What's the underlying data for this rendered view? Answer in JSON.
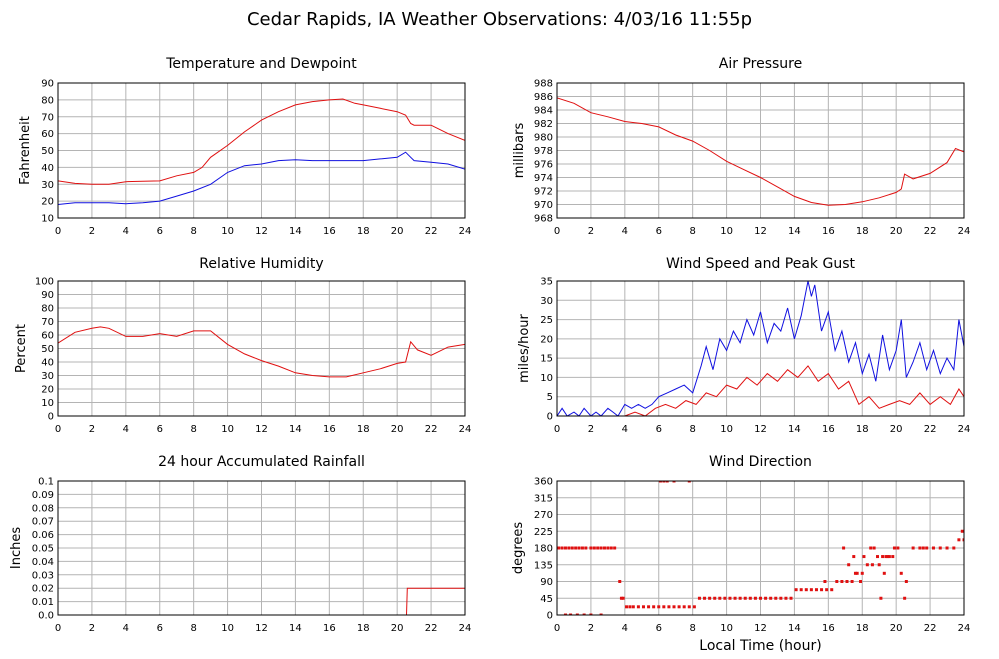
{
  "title": "Cedar Rapids, IA Weather Observations: 4/03/16 11:55p",
  "colors": {
    "red": "#e01010",
    "blue": "#1010e0",
    "grid": "#b4b4b4"
  },
  "chart_data": [
    {
      "id": "temperature",
      "type": "line",
      "title": "Temperature and Dewpoint",
      "xlabel": "",
      "ylabel": "Fahrenheit",
      "xlim": [
        0,
        24
      ],
      "ylim": [
        10,
        90
      ],
      "xticks": [
        0,
        2,
        4,
        6,
        8,
        10,
        12,
        14,
        16,
        18,
        20,
        22,
        24
      ],
      "yticks": [
        10,
        20,
        30,
        40,
        50,
        60,
        70,
        80,
        90
      ],
      "grid": true,
      "series": [
        {
          "color": "red",
          "x": [
            0,
            1,
            2,
            3,
            4,
            5,
            6,
            7,
            8,
            8.5,
            9,
            10,
            11,
            12,
            13,
            14,
            15,
            16,
            16.8,
            17.5,
            18,
            19,
            20,
            20.5,
            20.8,
            21,
            22,
            23,
            24
          ],
          "y": [
            32,
            30.5,
            30,
            30,
            31.5,
            31.8,
            32,
            35,
            37,
            40,
            46,
            53,
            61,
            68,
            73,
            77,
            79,
            80,
            80.5,
            78,
            77,
            75,
            73,
            71,
            66,
            65,
            65,
            60,
            56
          ]
        },
        {
          "color": "blue",
          "x": [
            0,
            1,
            2,
            3,
            4,
            5,
            6,
            7,
            8,
            9,
            10,
            11,
            12,
            13,
            14,
            15,
            16,
            17,
            18,
            19,
            20,
            20.5,
            20.8,
            21,
            22,
            23,
            24
          ],
          "y": [
            18,
            19,
            19,
            19,
            18.5,
            19,
            20,
            23,
            26,
            30,
            37,
            41,
            42,
            44,
            44.5,
            44,
            44,
            44,
            44,
            45,
            46,
            49,
            46,
            44,
            43,
            42,
            39
          ]
        }
      ]
    },
    {
      "id": "pressure",
      "type": "line",
      "title": "Air Pressure",
      "xlabel": "",
      "ylabel": "millibars",
      "xlim": [
        0,
        24
      ],
      "ylim": [
        968,
        988
      ],
      "xticks": [
        0,
        2,
        4,
        6,
        8,
        10,
        12,
        14,
        16,
        18,
        20,
        22,
        24
      ],
      "yticks": [
        968,
        970,
        972,
        974,
        976,
        978,
        980,
        982,
        984,
        986,
        988
      ],
      "grid": true,
      "series": [
        {
          "color": "red",
          "x": [
            0,
            1,
            2,
            3,
            4,
            5,
            6,
            7,
            8,
            9,
            10,
            11,
            12,
            13,
            14,
            15,
            16,
            17,
            18,
            19,
            20,
            20.3,
            20.5,
            21,
            22,
            23,
            23.5,
            24
          ],
          "y": [
            985.8,
            985,
            983.6,
            983,
            982.3,
            982,
            981.5,
            980.3,
            979.4,
            978,
            976.4,
            975.2,
            974,
            972.6,
            971.2,
            970.3,
            969.9,
            970,
            970.4,
            971,
            971.8,
            972.3,
            974.5,
            973.8,
            974.6,
            976.2,
            978.3,
            977.8
          ]
        }
      ]
    },
    {
      "id": "humidity",
      "type": "line",
      "title": "Relative Humidity",
      "xlabel": "",
      "ylabel": "Percent",
      "xlim": [
        0,
        24
      ],
      "ylim": [
        0,
        100
      ],
      "xticks": [
        0,
        2,
        4,
        6,
        8,
        10,
        12,
        14,
        16,
        18,
        20,
        22,
        24
      ],
      "yticks": [
        0,
        10,
        20,
        30,
        40,
        50,
        60,
        70,
        80,
        90,
        100
      ],
      "grid": true,
      "series": [
        {
          "color": "red",
          "x": [
            0,
            1,
            2,
            2.5,
            3,
            4,
            5,
            6,
            7,
            8,
            9,
            10,
            11,
            12,
            13,
            14,
            15,
            16,
            17,
            18,
            19,
            20,
            20.5,
            20.8,
            21.2,
            22,
            23,
            24
          ],
          "y": [
            54,
            62,
            65,
            66,
            65,
            59,
            59,
            61,
            59,
            63,
            63,
            53,
            46,
            41,
            37,
            32,
            30,
            29,
            29,
            32,
            35,
            39,
            40,
            55,
            49,
            45,
            51,
            53
          ]
        }
      ]
    },
    {
      "id": "wind",
      "type": "line",
      "title": "Wind Speed and Peak Gust",
      "xlabel": "",
      "ylabel": "miles/hour",
      "xlim": [
        0,
        24
      ],
      "ylim": [
        0,
        35
      ],
      "xticks": [
        0,
        2,
        4,
        6,
        8,
        10,
        12,
        14,
        16,
        18,
        20,
        22,
        24
      ],
      "yticks": [
        0,
        5,
        10,
        15,
        20,
        25,
        30,
        35
      ],
      "grid": true,
      "series": [
        {
          "color": "blue",
          "x": [
            0,
            0.3,
            0.6,
            1,
            1.3,
            1.6,
            2,
            2.3,
            2.6,
            3,
            3.3,
            3.6,
            4,
            4.4,
            4.8,
            5.2,
            5.6,
            6,
            6.5,
            7,
            7.5,
            8,
            8.5,
            8.8,
            9.2,
            9.6,
            10,
            10.4,
            10.8,
            11.2,
            11.6,
            12,
            12.4,
            12.8,
            13.2,
            13.6,
            14,
            14.4,
            14.8,
            15,
            15.2,
            15.6,
            16,
            16.4,
            16.8,
            17.2,
            17.6,
            18,
            18.4,
            18.8,
            19.2,
            19.6,
            20,
            20.3,
            20.6,
            21,
            21.4,
            21.8,
            22.2,
            22.6,
            23,
            23.4,
            23.7,
            24
          ],
          "y": [
            0,
            2,
            0,
            1,
            0,
            2,
            0,
            1,
            0,
            2,
            1,
            0,
            3,
            2,
            3,
            2,
            3,
            5,
            6,
            7,
            8,
            6,
            13,
            18,
            12,
            20,
            17,
            22,
            19,
            25,
            21,
            27,
            19,
            24,
            22,
            28,
            20,
            26,
            35,
            31,
            34,
            22,
            27,
            17,
            22,
            14,
            19,
            11,
            16,
            9,
            21,
            12,
            17,
            25,
            10,
            14,
            19,
            12,
            17,
            11,
            15,
            12,
            25,
            18
          ]
        },
        {
          "color": "red",
          "x": [
            0,
            1,
            2,
            3,
            4,
            4.6,
            5.2,
            5.8,
            6.4,
            7,
            7.6,
            8.2,
            8.8,
            9.4,
            10,
            10.6,
            11.2,
            11.8,
            12.4,
            13,
            13.6,
            14.2,
            14.8,
            15.4,
            16,
            16.6,
            17.2,
            17.8,
            18.4,
            19,
            19.6,
            20.2,
            20.8,
            21.4,
            22,
            22.6,
            23.2,
            23.7,
            24
          ],
          "y": [
            0,
            0,
            0,
            0,
            0,
            1,
            0,
            2,
            3,
            2,
            4,
            3,
            6,
            5,
            8,
            7,
            10,
            8,
            11,
            9,
            12,
            10,
            13,
            9,
            11,
            7,
            9,
            3,
            5,
            2,
            3,
            4,
            3,
            6,
            3,
            5,
            3,
            7,
            5
          ]
        }
      ]
    },
    {
      "id": "rainfall",
      "type": "line",
      "title": "24 hour Accumulated Rainfall",
      "xlabel": "",
      "ylabel": "Inches",
      "xlim": [
        0,
        24
      ],
      "ylim": [
        0,
        0.1
      ],
      "xticks": [
        0,
        2,
        4,
        6,
        8,
        10,
        12,
        14,
        16,
        18,
        20,
        22,
        24
      ],
      "yticks": [
        0.0,
        0.01,
        0.02,
        0.03,
        0.04,
        0.05,
        0.06,
        0.07,
        0.08,
        0.09,
        0.1
      ],
      "ytick_labels": [
        "0.0",
        "0.01",
        "0.02",
        "0.03",
        "0.04",
        "0.05",
        "0.06",
        "0.07",
        "0.08",
        "0.09",
        "0.1"
      ],
      "grid": true,
      "series": [
        {
          "color": "red",
          "x": [
            0,
            20.55,
            20.6,
            24
          ],
          "y": [
            0,
            0,
            0.02,
            0.02
          ]
        }
      ]
    },
    {
      "id": "direction",
      "type": "scatter",
      "title": "Wind Direction",
      "xlabel": "Local Time (hour)",
      "ylabel": "degrees",
      "xlim": [
        0,
        24
      ],
      "ylim": [
        0,
        360
      ],
      "xticks": [
        0,
        2,
        4,
        6,
        8,
        10,
        12,
        14,
        16,
        18,
        20,
        22,
        24
      ],
      "yticks": [
        0,
        45,
        90,
        135,
        180,
        225,
        270,
        315,
        360
      ],
      "grid": true,
      "series": [
        {
          "color": "red",
          "x": [
            0.1,
            0.3,
            0.5,
            0.7,
            0.9,
            1.1,
            1.3,
            1.5,
            1.7,
            2.0,
            2.2,
            2.4,
            2.6,
            2.8,
            3.0,
            3.2,
            3.4,
            0.5,
            0.8,
            1.2,
            1.6,
            2.0,
            2.6,
            3.7,
            3.8,
            3.9,
            4.1,
            4.3,
            4.5,
            4.8,
            5.1,
            5.4,
            5.7,
            6.0,
            6.3,
            6.6,
            6.9,
            7.2,
            7.5,
            7.8,
            8.1,
            8.4,
            8.7,
            9.0,
            9.3,
            9.6,
            9.9,
            10.2,
            10.5,
            10.8,
            11.1,
            11.4,
            11.7,
            12.0,
            12.3,
            12.6,
            12.9,
            13.2,
            13.5,
            13.8,
            6.1,
            6.3,
            6.5,
            6.9,
            7.8,
            14.1,
            14.4,
            14.7,
            15.0,
            15.3,
            15.6,
            15.9,
            16.2,
            16.5,
            16.8,
            17.1,
            17.4,
            17.7,
            18.0,
            18.3,
            18.6,
            18.9,
            19.2,
            19.5,
            19.8,
            20.1,
            17.2,
            17.6,
            18.1,
            18.5,
            19.0,
            19.3,
            19.6,
            19.9,
            20.3,
            20.6,
            21.0,
            21.4,
            21.8,
            22.2,
            22.6,
            23.0,
            23.4,
            23.7,
            23.9,
            24.0,
            16.9,
            17.5,
            18.7,
            19.4,
            20.5,
            21.6,
            15.8,
            17.9,
            19.1
          ],
          "y": [
            180,
            180,
            180,
            180,
            180,
            180,
            180,
            180,
            180,
            180,
            180,
            180,
            180,
            180,
            180,
            180,
            180,
            0,
            0,
            0,
            0,
            0,
            0,
            90,
            45,
            45,
            22,
            22,
            22,
            22,
            22,
            22,
            22,
            22,
            22,
            22,
            22,
            22,
            22,
            22,
            22,
            45,
            45,
            45,
            45,
            45,
            45,
            45,
            45,
            45,
            45,
            45,
            45,
            45,
            45,
            45,
            45,
            45,
            45,
            45,
            360,
            360,
            360,
            360,
            360,
            68,
            68,
            68,
            68,
            68,
            68,
            68,
            68,
            90,
            90,
            90,
            90,
            112,
            112,
            135,
            135,
            157,
            157,
            157,
            157,
            180,
            135,
            112,
            157,
            180,
            135,
            112,
            157,
            180,
            112,
            90,
            180,
            180,
            180,
            180,
            180,
            180,
            180,
            202,
            225,
            202,
            180,
            157,
            180,
            157,
            45,
            180,
            90,
            90,
            45
          ]
        }
      ]
    }
  ]
}
